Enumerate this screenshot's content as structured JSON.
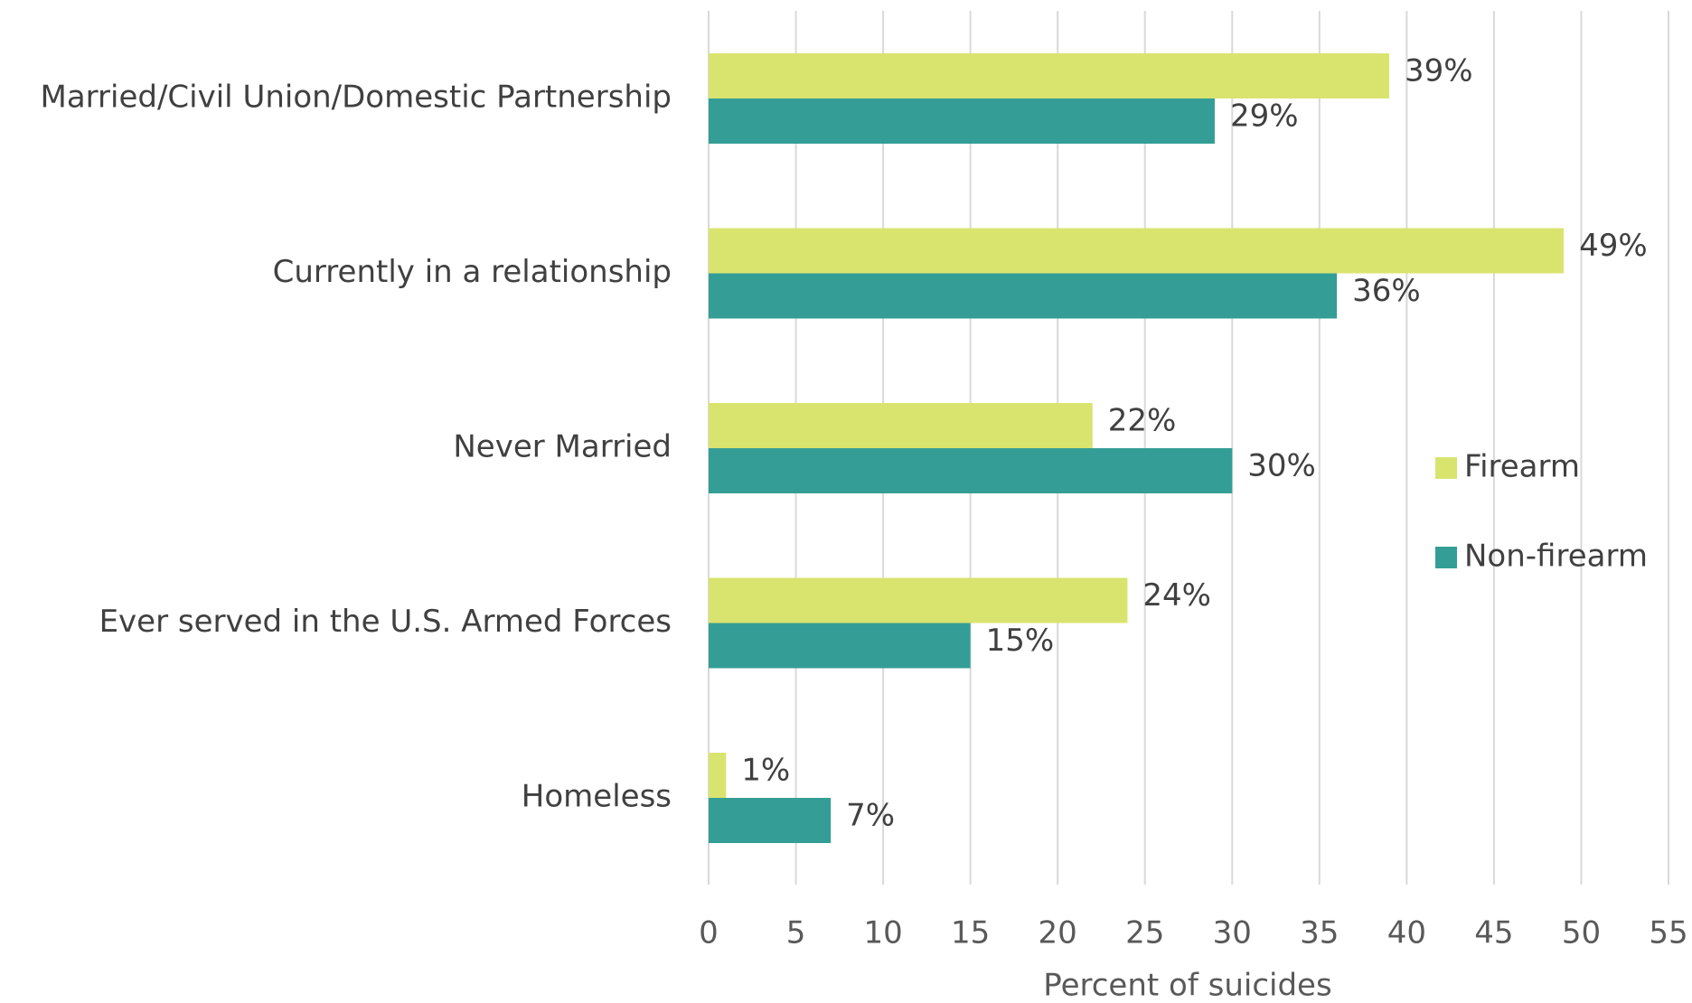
{
  "chart_data": {
    "type": "hbar",
    "categories": [
      "Married/Civil Union/Domestic Partnership",
      "Currently in a relationship",
      "Never Married",
      "Ever served in the U.S. Armed Forces",
      "Homeless"
    ],
    "series": [
      {
        "name": "Firearm",
        "color": "#d9e46f",
        "values": [
          39,
          49,
          22,
          24,
          1
        ],
        "value_labels": [
          "39%",
          "49%",
          "22%",
          "24%",
          "1%"
        ]
      },
      {
        "name": "Non-firearm",
        "color": "#349e96",
        "values": [
          29,
          36,
          30,
          15,
          7
        ],
        "value_labels": [
          "29%",
          "36%",
          "30%",
          "15%",
          "7%"
        ]
      }
    ],
    "xlabel": "Percent of suicides",
    "xlim": [
      0,
      55
    ],
    "xticks": [
      0,
      5,
      10,
      15,
      20,
      25,
      30,
      35,
      40,
      45,
      50,
      55
    ],
    "grid": true,
    "legend": "right"
  }
}
